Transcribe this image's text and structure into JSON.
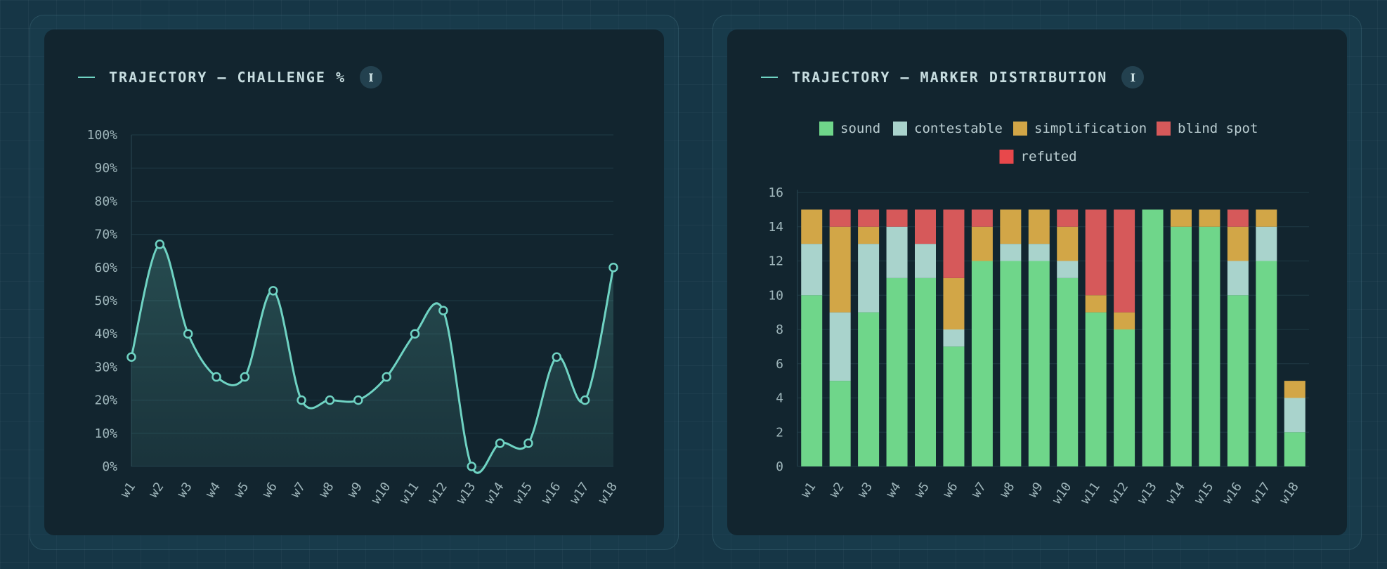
{
  "colors": {
    "line": "#6fd3c3",
    "sound": "#6fd68a",
    "contestable": "#a9d3cc",
    "simplification": "#d2a647",
    "blind_spot": "#d6595a",
    "refuted": "#e8484b"
  },
  "panels": {
    "left": {
      "title": "TRAJECTORY — CHALLENGE %",
      "info_label": "I"
    },
    "right": {
      "title": "TRAJECTORY — MARKER DISTRIBUTION",
      "info_label": "I"
    }
  },
  "chart_data": [
    {
      "type": "line",
      "title": "TRAJECTORY — CHALLENGE %",
      "categories": [
        "w1",
        "w2",
        "w3",
        "w4",
        "w5",
        "w6",
        "w7",
        "w8",
        "w9",
        "w10",
        "w11",
        "w12",
        "w13",
        "w14",
        "w15",
        "w16",
        "w17",
        "w18"
      ],
      "values": [
        33,
        67,
        40,
        27,
        27,
        53,
        20,
        20,
        20,
        27,
        40,
        47,
        0,
        7,
        7,
        33,
        20,
        60
      ],
      "ylim": [
        0,
        100
      ],
      "yticks": [
        "0%",
        "10%",
        "20%",
        "30%",
        "40%",
        "50%",
        "60%",
        "70%",
        "80%",
        "90%",
        "100%"
      ],
      "xlabel": "",
      "ylabel": "",
      "grid": true
    },
    {
      "type": "bar",
      "stacked": true,
      "title": "TRAJECTORY — MARKER DISTRIBUTION",
      "categories": [
        "w1",
        "w2",
        "w3",
        "w4",
        "w5",
        "w6",
        "w7",
        "w8",
        "w9",
        "w10",
        "w11",
        "w12",
        "w13",
        "w14",
        "w15",
        "w16",
        "w17",
        "w18"
      ],
      "legend_position": "top",
      "series": [
        {
          "key": "sound",
          "name": "sound",
          "values": [
            10,
            5,
            9,
            11,
            11,
            7,
            12,
            12,
            12,
            11,
            9,
            8,
            15,
            14,
            14,
            10,
            12,
            2
          ]
        },
        {
          "key": "contestable",
          "name": "contestable",
          "values": [
            3,
            4,
            4,
            3,
            2,
            1,
            0,
            1,
            1,
            1,
            0,
            0,
            0,
            0,
            0,
            2,
            2,
            2
          ]
        },
        {
          "key": "simplification",
          "name": "simplification",
          "values": [
            2,
            5,
            1,
            0,
            0,
            3,
            2,
            2,
            2,
            2,
            1,
            1,
            0,
            1,
            1,
            2,
            1,
            1
          ]
        },
        {
          "key": "blind_spot",
          "name": "blind spot",
          "values": [
            0,
            1,
            1,
            1,
            2,
            4,
            1,
            0,
            0,
            1,
            5,
            6,
            0,
            0,
            0,
            1,
            0,
            0
          ]
        },
        {
          "key": "refuted",
          "name": "refuted",
          "values": [
            0,
            0,
            0,
            0,
            0,
            0,
            0,
            0,
            0,
            0,
            0,
            0,
            0,
            0,
            0,
            0,
            0,
            0
          ]
        }
      ],
      "ylim": [
        0,
        16
      ],
      "yticks": [
        "0",
        "2",
        "4",
        "6",
        "8",
        "10",
        "12",
        "14",
        "16"
      ],
      "xlabel": "",
      "ylabel": "",
      "grid": true
    }
  ]
}
